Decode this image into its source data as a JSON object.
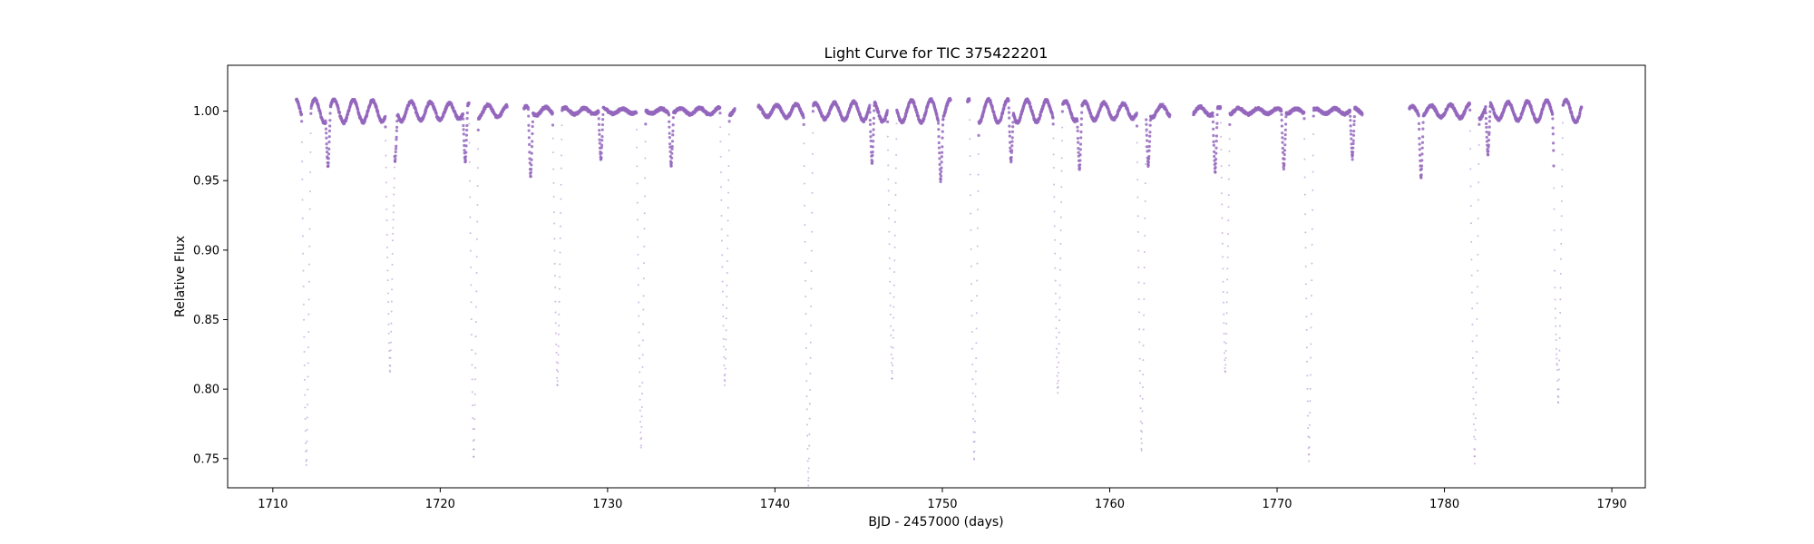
{
  "chart_data": {
    "type": "scatter",
    "title": "Light Curve for TIC 375422201",
    "xlabel": "BJD - 2457000 (days)",
    "ylabel": "Relative Flux",
    "xlim": [
      1707.3,
      1792.0
    ],
    "ylim": [
      0.729,
      1.033
    ],
    "x_ticks": [
      1710,
      1720,
      1730,
      1740,
      1750,
      1760,
      1770,
      1780,
      1790
    ],
    "x_tick_labels": [
      "1710",
      "1720",
      "1730",
      "1740",
      "1750",
      "1760",
      "1770",
      "1780",
      "1790"
    ],
    "y_ticks": [
      0.75,
      0.8,
      0.85,
      0.9,
      0.95,
      1.0
    ],
    "y_tick_labels": [
      "0.75",
      "0.80",
      "0.85",
      "0.90",
      "0.95",
      "1.00"
    ],
    "grid": false,
    "marker_color": "#9467bd",
    "series": [
      {
        "values_note_free": true,
        "x": [
          1711.5,
          1712.0,
          1712.5,
          1713.0,
          1713.5,
          1714.0,
          1714.5,
          1715.0,
          1715.5,
          1716.0,
          1716.5,
          1717.0,
          1717.5,
          1718.0,
          1718.5,
          1719.0,
          1719.5,
          1720.0,
          1720.5,
          1721.0,
          1721.5,
          1722.0,
          1722.5,
          1723.0,
          1723.5,
          1724.0,
          1725.0,
          1725.5,
          1726.0,
          1726.5,
          1727.0,
          1727.5,
          1728.0,
          1728.5,
          1729.0,
          1729.5,
          1730.0,
          1730.5,
          1731.0,
          1731.5,
          1732.0,
          1732.5,
          1733.0,
          1733.5,
          1734.0,
          1734.5,
          1735.0,
          1735.5,
          1736.0,
          1736.5,
          1737.0,
          1737.5,
          1739.0,
          1739.5,
          1740.0,
          1740.5,
          1741.0,
          1741.5,
          1742.0,
          1742.5,
          1743.0,
          1743.5,
          1744.0,
          1744.5,
          1745.0,
          1745.5,
          1746.0,
          1746.5,
          1747.0,
          1747.5,
          1748.0,
          1748.5,
          1749.0,
          1749.5,
          1750.0,
          1750.5,
          1751.5,
          1752.0,
          1752.5,
          1753.0,
          1753.5,
          1754.0,
          1754.5,
          1755.0,
          1755.5,
          1756.0,
          1756.5,
          1757.0,
          1757.5,
          1758.0,
          1758.5,
          1759.0,
          1759.5,
          1760.0,
          1760.5,
          1761.0,
          1761.5,
          1762.0,
          1762.5,
          1763.0,
          1763.5,
          1765.0,
          1765.5,
          1766.0,
          1766.5,
          1767.0,
          1767.5,
          1768.0,
          1768.5,
          1769.0,
          1769.5,
          1770.0,
          1770.5,
          1771.0,
          1771.5,
          1772.0,
          1772.5,
          1773.0,
          1773.5,
          1774.0,
          1774.5,
          1775.0,
          1778.0,
          1778.5,
          1779.0,
          1779.5,
          1780.0,
          1780.5,
          1781.0,
          1781.5,
          1782.0,
          1782.5,
          1783.0,
          1783.5,
          1784.0,
          1784.5,
          1785.0,
          1785.5,
          1786.0,
          1786.5,
          1787.0,
          1787.5,
          1788.0
        ],
        "y": [
          1.0,
          0.754,
          0.998,
          1.004,
          0.966,
          0.992,
          1.013,
          0.998,
          1.006,
          0.999,
          1.003,
          0.806,
          0.962,
          0.999,
          1.006,
          0.996,
          1.008,
          0.995,
          1.006,
          0.997,
          0.96,
          0.751,
          0.999,
          1.005,
          0.996,
          1.008,
          1.012,
          0.953,
          0.998,
          1.003,
          0.805,
          1.001,
          1.002,
          1.002,
          0.965,
          1.002,
          0.999,
          1.001,
          0.998,
          0.996,
          0.757,
          1.002,
          0.997,
          0.964,
          1.008,
          0.992,
          1.01,
          0.998,
          1.002,
          0.804,
          0.999,
          1.003,
          1.0,
          0.998,
          1.002,
          1.0,
          1.004,
          0.997,
          0.735,
          1.004,
          0.999,
          1.002,
          1.004,
          0.996,
          1.006,
          0.956,
          1.007,
          0.8,
          0.998,
          1.006,
          0.997,
          1.008,
          0.998,
          1.004,
          0.96,
          1.006,
          0.998,
          0.749,
          0.999,
          1.001,
          0.999,
          0.962,
          1.0,
          1.002,
          0.998,
          1.004,
          0.996,
          0.804,
          1.006,
          0.962,
          0.998,
          1.007,
          0.995,
          1.008,
          0.996,
          1.006,
          0.998,
          0.752,
          0.965,
          1.004,
          0.999,
          1.002,
          1.003,
          0.957,
          1.005,
          0.814,
          1.003,
          0.998,
          1.005,
          0.999,
          1.002,
          0.964,
          1.004,
          0.998,
          1.002,
          0.751,
          1.001,
          1.0,
          1.002,
          1.001,
          0.967,
          1.003,
          1.001,
          0.998,
          0.962,
          1.004,
          1.008,
          0.994,
          1.01,
          0.996,
          0.747,
          1.002,
          0.965,
          1.005,
          0.996,
          1.007,
          0.995,
          1.006,
          0.998,
          0.796,
          1.008,
          0.997,
          1.002
        ]
      }
    ],
    "transit_dips": [
      {
        "x": 1712.0,
        "min": 0.753
      },
      {
        "x": 1717.0,
        "min": 0.805
      },
      {
        "x": 1722.0,
        "min": 0.75
      },
      {
        "x": 1727.0,
        "min": 0.804
      },
      {
        "x": 1732.0,
        "min": 0.756
      },
      {
        "x": 1737.0,
        "min": 0.803
      },
      {
        "x": 1742.0,
        "min": 0.734
      },
      {
        "x": 1747.0,
        "min": 0.799
      },
      {
        "x": 1751.9,
        "min": 0.748
      },
      {
        "x": 1756.9,
        "min": 0.803
      },
      {
        "x": 1761.9,
        "min": 0.751
      },
      {
        "x": 1766.9,
        "min": 0.812
      },
      {
        "x": 1771.9,
        "min": 0.749
      },
      {
        "x": 1781.8,
        "min": 0.747
      },
      {
        "x": 1786.8,
        "min": 0.795
      }
    ],
    "secondary_dips": [
      {
        "x": 1713.3,
        "min": 0.963
      },
      {
        "x": 1717.3,
        "min": 0.96
      },
      {
        "x": 1721.5,
        "min": 0.96
      },
      {
        "x": 1725.4,
        "min": 0.951
      },
      {
        "x": 1729.6,
        "min": 0.963
      },
      {
        "x": 1733.8,
        "min": 0.962
      },
      {
        "x": 1745.8,
        "min": 0.955
      },
      {
        "x": 1749.9,
        "min": 0.958
      },
      {
        "x": 1754.1,
        "min": 0.959
      },
      {
        "x": 1758.2,
        "min": 0.958
      },
      {
        "x": 1762.3,
        "min": 0.961
      },
      {
        "x": 1766.3,
        "min": 0.955
      },
      {
        "x": 1770.4,
        "min": 0.96
      },
      {
        "x": 1774.5,
        "min": 0.964
      },
      {
        "x": 1778.6,
        "min": 0.955
      },
      {
        "x": 1782.6,
        "min": 0.963
      },
      {
        "x": 1786.6,
        "min": 0.953
      }
    ],
    "observation_segments": [
      [
        1711.4,
        1724.0
      ],
      [
        1725.0,
        1737.6
      ],
      [
        1739.0,
        1750.5
      ],
      [
        1751.5,
        1763.6
      ],
      [
        1765.0,
        1775.1
      ],
      [
        1777.9,
        1788.2
      ]
    ]
  }
}
